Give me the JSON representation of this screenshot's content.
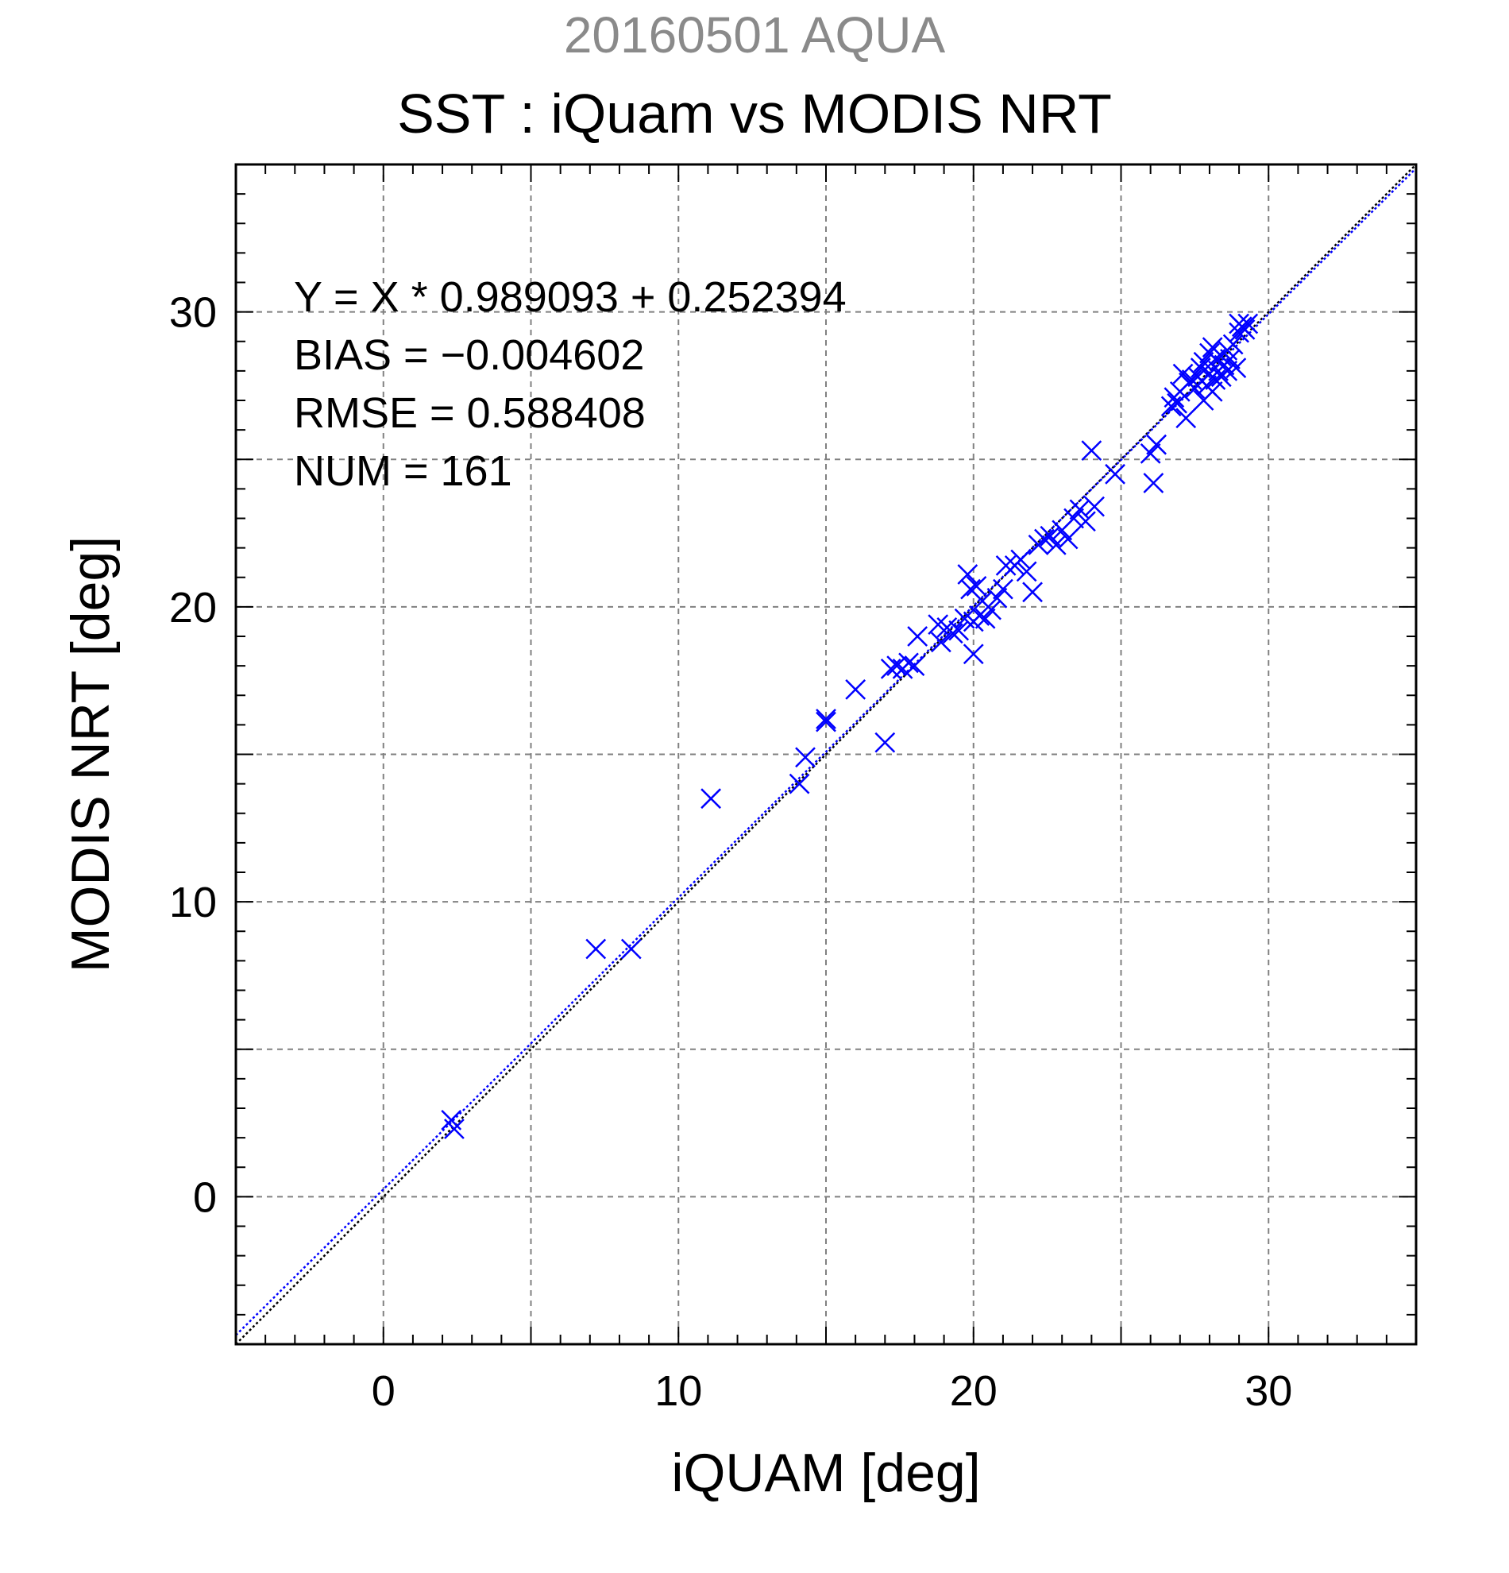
{
  "chart": {
    "date_title": "20160501 AQUA",
    "title": "SST : iQuam vs MODIS NRT",
    "stats": [
      "Y = X * 0.989093 + 0.252394",
      "BIAS = −0.004602",
      "RMSE = 0.588408",
      "NUM = 161"
    ]
  },
  "chart_data": {
    "type": "scatter",
    "title": "SST : iQuam vs MODIS NRT",
    "subtitle": "20160501 AQUA",
    "xlabel": "iQUAM [deg]",
    "ylabel": "MODIS NRT [deg]",
    "xlim": [
      -5,
      35
    ],
    "ylim": [
      -5,
      35
    ],
    "x_ticks": [
      0,
      10,
      20,
      30
    ],
    "y_ticks": [
      0,
      10,
      20,
      30
    ],
    "grid": true,
    "marker": "x",
    "marker_color": "#0000ff",
    "regression": {
      "slope": 0.989093,
      "intercept": 0.252394,
      "color": "#0000ff"
    },
    "one_to_one_line_color": "#000000",
    "stats": {
      "bias": -0.004602,
      "rmse": 0.588408,
      "num": 161
    },
    "points": [
      [
        2.3,
        2.6
      ],
      [
        2.4,
        2.3
      ],
      [
        7.2,
        8.4
      ],
      [
        8.4,
        8.4
      ],
      [
        11.1,
        13.5
      ],
      [
        14.1,
        14.0
      ],
      [
        14.3,
        14.9
      ],
      [
        15.0,
        16.2
      ],
      [
        15.0,
        16.1
      ],
      [
        16.0,
        17.2
      ],
      [
        17.0,
        15.4
      ],
      [
        17.2,
        17.9
      ],
      [
        17.4,
        18.0
      ],
      [
        17.6,
        17.9
      ],
      [
        17.8,
        18.1
      ],
      [
        18.0,
        18.0
      ],
      [
        18.1,
        19.0
      ],
      [
        18.8,
        19.4
      ],
      [
        18.9,
        18.8
      ],
      [
        19.1,
        19.3
      ],
      [
        19.3,
        19.1
      ],
      [
        19.5,
        19.2
      ],
      [
        19.7,
        19.6
      ],
      [
        19.8,
        21.1
      ],
      [
        19.9,
        20.6
      ],
      [
        20.0,
        19.5
      ],
      [
        20.0,
        18.4
      ],
      [
        20.1,
        20.7
      ],
      [
        20.2,
        19.7
      ],
      [
        20.3,
        20.2
      ],
      [
        20.4,
        19.6
      ],
      [
        20.6,
        19.9
      ],
      [
        20.8,
        20.3
      ],
      [
        21.0,
        20.6
      ],
      [
        21.1,
        21.4
      ],
      [
        21.4,
        21.4
      ],
      [
        21.6,
        21.6
      ],
      [
        21.8,
        21.2
      ],
      [
        22.0,
        20.5
      ],
      [
        22.2,
        22.1
      ],
      [
        22.4,
        22.3
      ],
      [
        22.6,
        22.4
      ],
      [
        22.8,
        22.1
      ],
      [
        23.0,
        22.6
      ],
      [
        23.2,
        22.3
      ],
      [
        23.4,
        23.0
      ],
      [
        23.6,
        23.3
      ],
      [
        23.8,
        22.9
      ],
      [
        24.0,
        25.3
      ],
      [
        24.1,
        23.4
      ],
      [
        24.8,
        24.5
      ],
      [
        26.0,
        25.2
      ],
      [
        26.1,
        24.2
      ],
      [
        26.2,
        25.5
      ],
      [
        26.7,
        26.8
      ],
      [
        26.8,
        27.1
      ],
      [
        26.9,
        26.9
      ],
      [
        27.0,
        27.3
      ],
      [
        27.1,
        27.9
      ],
      [
        27.2,
        26.4
      ],
      [
        27.3,
        27.6
      ],
      [
        27.4,
        27.7
      ],
      [
        27.5,
        27.4
      ],
      [
        27.6,
        27.8
      ],
      [
        27.7,
        28.1
      ],
      [
        27.8,
        27.0
      ],
      [
        27.8,
        28.3
      ],
      [
        27.9,
        27.5
      ],
      [
        28.0,
        28.6
      ],
      [
        28.0,
        27.9
      ],
      [
        28.1,
        28.8
      ],
      [
        28.1,
        27.3
      ],
      [
        28.2,
        28.4
      ],
      [
        28.2,
        27.7
      ],
      [
        28.3,
        28.0
      ],
      [
        28.4,
        28.5
      ],
      [
        28.4,
        27.8
      ],
      [
        28.5,
        28.2
      ],
      [
        28.6,
        28.7
      ],
      [
        28.6,
        28.0
      ],
      [
        28.7,
        28.4
      ],
      [
        28.8,
        28.9
      ],
      [
        28.9,
        28.1
      ],
      [
        29.0,
        29.6
      ],
      [
        29.0,
        29.3
      ],
      [
        29.1,
        29.5
      ],
      [
        29.2,
        29.4
      ],
      [
        29.3,
        29.6
      ]
    ]
  }
}
